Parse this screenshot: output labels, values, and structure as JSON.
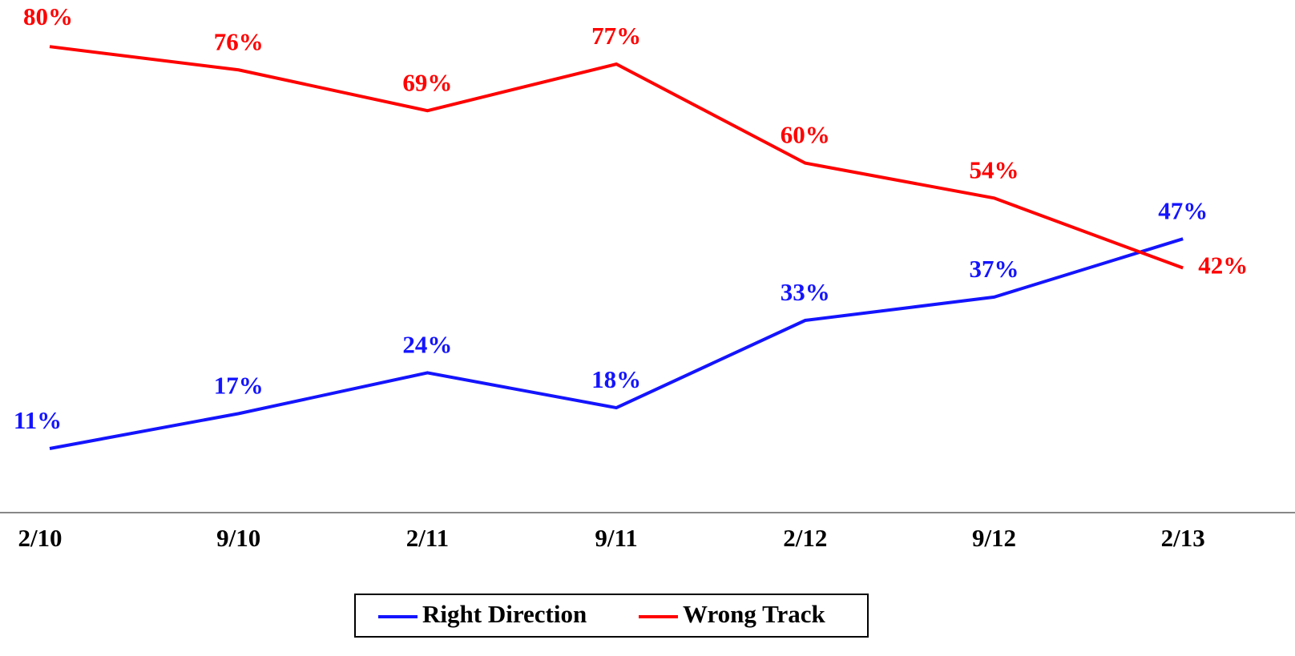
{
  "chart_data": {
    "type": "line",
    "categories": [
      "2/10",
      "9/10",
      "2/11",
      "9/11",
      "2/12",
      "9/12",
      "2/13"
    ],
    "series": [
      {
        "name": "Right Direction",
        "color": "#1414ff",
        "values": [
          11,
          17,
          24,
          18,
          33,
          37,
          47
        ],
        "value_labels": [
          "11%",
          "17%",
          "24%",
          "18%",
          "33%",
          "37%",
          "47%"
        ]
      },
      {
        "name": "Wrong Track",
        "color": "#ff0000",
        "values": [
          80,
          76,
          69,
          77,
          60,
          54,
          42
        ],
        "value_labels": [
          "80%",
          "76%",
          "69%",
          "77%",
          "60%",
          "54%",
          "42%"
        ]
      }
    ],
    "ylim": [
      0,
      88
    ],
    "legend": "bottom"
  }
}
